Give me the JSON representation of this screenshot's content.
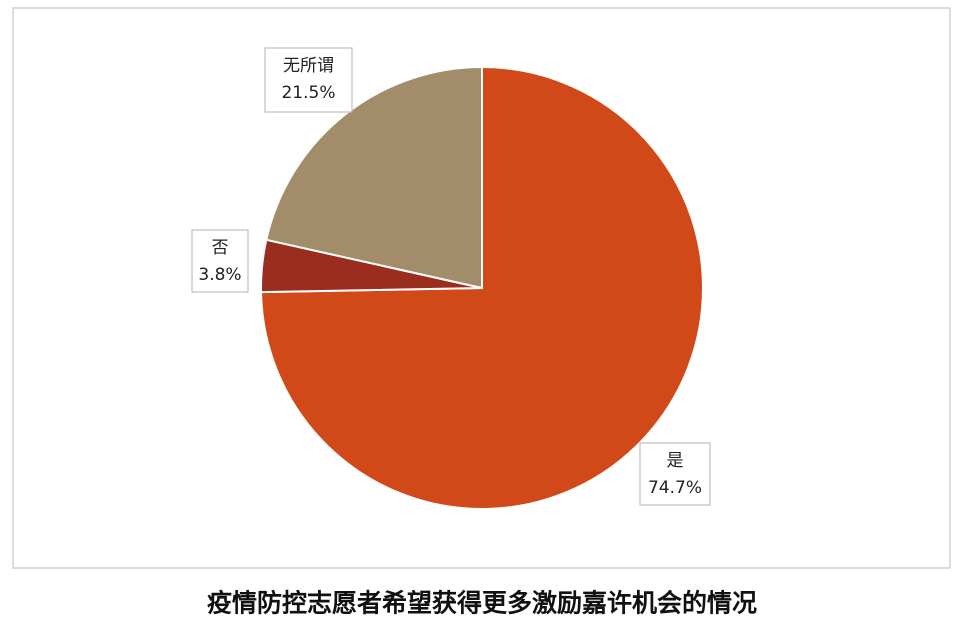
{
  "chart_data": {
    "type": "pie",
    "title": "疫情防控志愿者希望获得更多激励嘉许机会的情况",
    "categories": [
      "是",
      "否",
      "无所谓"
    ],
    "values": [
      74.7,
      3.8,
      21.5
    ],
    "value_labels": [
      "74.7%",
      "3.8%",
      "21.5%"
    ],
    "colors": [
      "#d14918",
      "#9b2d1f",
      "#a28c6a"
    ]
  }
}
